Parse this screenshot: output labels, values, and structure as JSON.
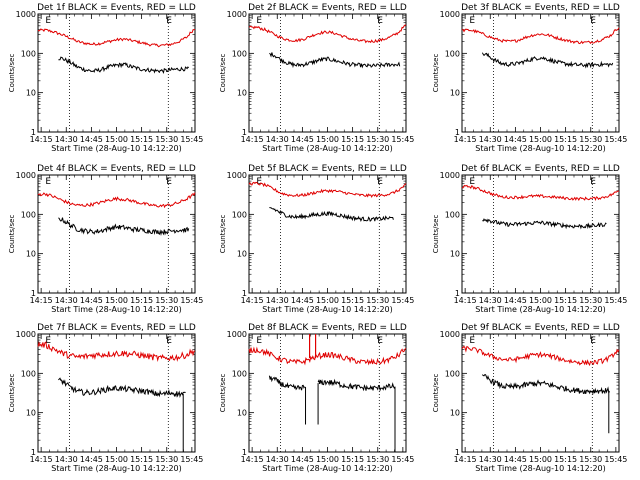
{
  "colors": {
    "background": "#ffffff",
    "axes": "#000000",
    "events": "#000000",
    "lld": "#e00000"
  },
  "chart_data": [
    {
      "type": "line",
      "detector": "1f",
      "title": "Det 1f BLACK = Events, RED = LLD",
      "xlabel": "Start Time (28-Aug-10 14:12:20)",
      "ylabel": "Counts/sec",
      "ylog": true,
      "ylim": [
        1,
        1000
      ],
      "xticks": [
        "14:15",
        "14:30",
        "14:45",
        "15:00",
        "15:15",
        "15:30",
        "15:45"
      ],
      "yticks": [
        "1",
        "10",
        "100",
        "1000"
      ],
      "markers": [
        {
          "label": "E",
          "at": 0.06
        },
        {
          "label": "E",
          "at": 0.83
        }
      ],
      "vlines": [
        0.2,
        0.83
      ],
      "x": [
        0.0,
        0.05,
        0.1,
        0.15,
        0.2,
        0.25,
        0.3,
        0.35,
        0.4,
        0.45,
        0.5,
        0.55,
        0.6,
        0.65,
        0.7,
        0.75,
        0.8,
        0.85,
        0.9,
        0.95,
        1.0
      ],
      "series": [
        {
          "name": "LLD",
          "color": "red",
          "start": 0.0,
          "end": 1.0,
          "noise": 0.035,
          "values": [
            380,
            390,
            350,
            300,
            250,
            200,
            180,
            170,
            180,
            200,
            220,
            230,
            210,
            190,
            170,
            160,
            160,
            170,
            200,
            260,
            430
          ]
        },
        {
          "name": "Events",
          "color": "black",
          "start": 0.13,
          "end": 0.96,
          "noise": 0.05,
          "values": [
            null,
            null,
            null,
            75,
            60,
            45,
            38,
            35,
            38,
            45,
            50,
            52,
            45,
            40,
            38,
            36,
            36,
            38,
            40,
            40,
            null
          ]
        }
      ]
    },
    {
      "type": "line",
      "detector": "2f",
      "title": "Det 2f BLACK = Events, RED = LLD",
      "xlabel": "Start Time (28-Aug-10 14:12:20)",
      "ylabel": "Counts/sec",
      "ylog": true,
      "ylim": [
        1,
        1000
      ],
      "xticks": [
        "14:15",
        "14:30",
        "14:45",
        "15:00",
        "15:15",
        "15:30",
        "15:45"
      ],
      "yticks": [
        "1",
        "10",
        "100",
        "1000"
      ],
      "markers": [
        {
          "label": "E",
          "at": 0.06
        },
        {
          "label": "E",
          "at": 0.83
        }
      ],
      "vlines": [
        0.2,
        0.83
      ],
      "x": [
        0.0,
        0.05,
        0.1,
        0.15,
        0.2,
        0.25,
        0.3,
        0.35,
        0.4,
        0.45,
        0.5,
        0.55,
        0.6,
        0.65,
        0.7,
        0.75,
        0.8,
        0.85,
        0.9,
        0.95,
        1.0
      ],
      "series": [
        {
          "name": "LLD",
          "color": "red",
          "start": 0.0,
          "end": 1.0,
          "noise": 0.035,
          "values": [
            450,
            460,
            400,
            320,
            250,
            220,
            210,
            230,
            280,
            330,
            350,
            320,
            270,
            230,
            210,
            200,
            205,
            220,
            260,
            330,
            520
          ]
        },
        {
          "name": "Events",
          "color": "black",
          "start": 0.13,
          "end": 0.96,
          "noise": 0.05,
          "values": [
            null,
            null,
            null,
            95,
            70,
            55,
            50,
            52,
            58,
            68,
            72,
            65,
            58,
            52,
            50,
            48,
            48,
            50,
            52,
            52,
            null
          ]
        }
      ]
    },
    {
      "type": "line",
      "detector": "3f",
      "title": "Det 3f BLACK = Events, RED = LLD",
      "xlabel": "Start Time (28-Aug-10 14:12:20)",
      "ylabel": "Counts/sec",
      "ylog": true,
      "ylim": [
        1,
        1000
      ],
      "xticks": [
        "14:15",
        "14:30",
        "14:45",
        "15:00",
        "15:15",
        "15:30",
        "15:45"
      ],
      "yticks": [
        "1",
        "10",
        "100",
        "1000"
      ],
      "markers": [
        {
          "label": "E",
          "at": 0.06
        },
        {
          "label": "E",
          "at": 0.83
        }
      ],
      "vlines": [
        0.2,
        0.83
      ],
      "x": [
        0.0,
        0.05,
        0.1,
        0.15,
        0.2,
        0.25,
        0.3,
        0.35,
        0.4,
        0.45,
        0.5,
        0.55,
        0.6,
        0.65,
        0.7,
        0.75,
        0.8,
        0.85,
        0.9,
        0.95,
        1.0
      ],
      "series": [
        {
          "name": "LLD",
          "color": "red",
          "start": 0.0,
          "end": 1.0,
          "noise": 0.035,
          "values": [
            380,
            390,
            350,
            290,
            240,
            210,
            200,
            210,
            250,
            290,
            310,
            290,
            250,
            220,
            200,
            190,
            190,
            200,
            230,
            290,
            460
          ]
        },
        {
          "name": "Events",
          "color": "black",
          "start": 0.13,
          "end": 0.96,
          "noise": 0.05,
          "values": [
            null,
            null,
            null,
            95,
            70,
            55,
            52,
            55,
            62,
            72,
            78,
            70,
            60,
            55,
            52,
            50,
            50,
            52,
            52,
            52,
            null
          ]
        }
      ]
    },
    {
      "type": "line",
      "detector": "4f",
      "title": "Det 4f BLACK = Events, RED = LLD",
      "xlabel": "Start Time (28-Aug-10 14:12:20)",
      "ylabel": "Counts/sec",
      "ylog": true,
      "ylim": [
        1,
        1000
      ],
      "xticks": [
        "14:15",
        "14:30",
        "14:45",
        "15:00",
        "15:15",
        "15:30",
        "15:45"
      ],
      "yticks": [
        "1",
        "10",
        "100",
        "1000"
      ],
      "markers": [
        {
          "label": "E",
          "at": 0.06
        },
        {
          "label": "E",
          "at": 0.83
        }
      ],
      "vlines": [
        0.2,
        0.83
      ],
      "x": [
        0.0,
        0.05,
        0.1,
        0.15,
        0.2,
        0.25,
        0.3,
        0.35,
        0.4,
        0.45,
        0.5,
        0.55,
        0.6,
        0.65,
        0.7,
        0.75,
        0.8,
        0.85,
        0.9,
        0.95,
        1.0
      ],
      "series": [
        {
          "name": "LLD",
          "color": "red",
          "start": 0.0,
          "end": 1.0,
          "noise": 0.04,
          "values": [
            320,
            330,
            280,
            230,
            190,
            170,
            170,
            180,
            200,
            230,
            250,
            240,
            220,
            195,
            175,
            165,
            165,
            175,
            200,
            250,
            330
          ]
        },
        {
          "name": "Events",
          "color": "black",
          "start": 0.13,
          "end": 0.96,
          "noise": 0.06,
          "values": [
            null,
            null,
            null,
            75,
            55,
            42,
            38,
            36,
            38,
            44,
            48,
            46,
            42,
            40,
            38,
            36,
            36,
            38,
            40,
            40,
            null
          ]
        }
      ]
    },
    {
      "type": "line",
      "detector": "5f",
      "title": "Det 5f BLACK = Events, RED = LLD",
      "xlabel": "Start Time (28-Aug-10 14:12:20)",
      "ylabel": "Counts/sec",
      "ylog": true,
      "ylim": [
        1,
        1000
      ],
      "xticks": [
        "14:15",
        "14:30",
        "14:45",
        "15:00",
        "15:15",
        "15:30",
        "15:45"
      ],
      "yticks": [
        "1",
        "10",
        "100",
        "1000"
      ],
      "markers": [
        {
          "label": "E",
          "at": 0.06
        },
        {
          "label": "E",
          "at": 0.83
        }
      ],
      "vlines": [
        0.2,
        0.83
      ],
      "x": [
        0.0,
        0.05,
        0.1,
        0.15,
        0.2,
        0.25,
        0.3,
        0.35,
        0.4,
        0.45,
        0.5,
        0.55,
        0.6,
        0.65,
        0.7,
        0.75,
        0.8,
        0.85,
        0.9,
        0.95,
        1.0
      ],
      "series": [
        {
          "name": "LLD",
          "color": "red",
          "start": 0.0,
          "end": 1.0,
          "noise": 0.035,
          "values": [
            600,
            610,
            560,
            450,
            350,
            310,
            300,
            310,
            340,
            380,
            400,
            390,
            360,
            330,
            310,
            300,
            300,
            310,
            330,
            400,
            560
          ]
        },
        {
          "name": "Events",
          "color": "black",
          "start": 0.13,
          "end": 0.92,
          "noise": 0.05,
          "values": [
            null,
            null,
            null,
            140,
            110,
            90,
            85,
            88,
            95,
            100,
            105,
            100,
            90,
            82,
            78,
            75,
            75,
            78,
            80,
            null,
            null
          ]
        }
      ]
    },
    {
      "type": "line",
      "detector": "6f",
      "title": "Det 6f BLACK = Events, RED = LLD",
      "xlabel": "Start Time (28-Aug-10 14:12:20)",
      "ylabel": "Counts/sec",
      "ylog": true,
      "ylim": [
        1,
        1000
      ],
      "xticks": [
        "14:15",
        "14:30",
        "14:45",
        "15:00",
        "15:15",
        "15:30",
        "15:45"
      ],
      "yticks": [
        "1",
        "10",
        "100",
        "1000"
      ],
      "markers": [
        {
          "label": "E",
          "at": 0.06
        },
        {
          "label": "E",
          "at": 0.83
        }
      ],
      "vlines": [
        0.2,
        0.83
      ],
      "x": [
        0.0,
        0.05,
        0.1,
        0.15,
        0.2,
        0.25,
        0.3,
        0.35,
        0.4,
        0.45,
        0.5,
        0.55,
        0.6,
        0.65,
        0.7,
        0.75,
        0.8,
        0.85,
        0.9,
        0.95,
        1.0
      ],
      "series": [
        {
          "name": "LLD",
          "color": "red",
          "start": 0.0,
          "end": 1.0,
          "noise": 0.035,
          "values": [
            500,
            510,
            450,
            380,
            320,
            280,
            270,
            270,
            280,
            290,
            290,
            280,
            270,
            260,
            250,
            250,
            250,
            255,
            270,
            310,
            400
          ]
        },
        {
          "name": "Events",
          "color": "black",
          "start": 0.13,
          "end": 0.92,
          "noise": 0.05,
          "values": [
            null,
            null,
            null,
            75,
            65,
            58,
            55,
            56,
            58,
            60,
            62,
            58,
            55,
            52,
            50,
            50,
            50,
            52,
            55,
            null,
            null
          ]
        }
      ]
    },
    {
      "type": "line",
      "detector": "7f",
      "title": "Det 7f BLACK = Events, RED = LLD",
      "xlabel": "Start Time (28-Aug-10 14:12:20)",
      "ylabel": "Counts/sec",
      "ylog": true,
      "ylim": [
        1,
        1000
      ],
      "xticks": [
        "14:15",
        "14:30",
        "14:45",
        "15:00",
        "15:15",
        "15:30",
        "15:45"
      ],
      "yticks": [
        "1",
        "10",
        "100",
        "1000"
      ],
      "markers": [
        {
          "label": "E",
          "at": 0.06
        },
        {
          "label": "E",
          "at": 0.83
        }
      ],
      "vlines": [
        0.2,
        0.83
      ],
      "x": [
        0.0,
        0.05,
        0.1,
        0.15,
        0.2,
        0.25,
        0.3,
        0.35,
        0.4,
        0.45,
        0.5,
        0.55,
        0.6,
        0.65,
        0.7,
        0.75,
        0.8,
        0.85,
        0.9,
        0.95,
        1.0
      ],
      "series": [
        {
          "name": "LLD",
          "color": "red",
          "start": 0.0,
          "end": 1.0,
          "noise": 0.08,
          "values": [
            550,
            520,
            420,
            330,
            280,
            260,
            270,
            290,
            300,
            310,
            320,
            320,
            310,
            290,
            270,
            250,
            240,
            250,
            260,
            300,
            380
          ]
        },
        {
          "name": "Events",
          "color": "black",
          "start": 0.13,
          "end": 0.94,
          "noise": 0.07,
          "values": [
            null,
            null,
            null,
            65,
            45,
            35,
            32,
            33,
            36,
            40,
            42,
            40,
            38,
            36,
            34,
            30,
            30,
            32,
            30,
            30,
            null
          ]
        }
      ],
      "dips": [
        {
          "series": "Events",
          "at": 0.925,
          "to": 1
        }
      ]
    },
    {
      "type": "line",
      "detector": "8f",
      "title": "Det 8f BLACK = Events, RED = LLD",
      "xlabel": "Start Time (28-Aug-10 14:12:20)",
      "ylabel": "Counts/sec",
      "ylog": true,
      "ylim": [
        1,
        1000
      ],
      "xticks": [
        "14:15",
        "14:30",
        "14:45",
        "15:00",
        "15:15",
        "15:30",
        "15:45"
      ],
      "yticks": [
        "1",
        "10",
        "100",
        "1000"
      ],
      "markers": [
        {
          "label": "E",
          "at": 0.06
        },
        {
          "label": "E",
          "at": 0.83
        }
      ],
      "vlines": [
        0.2,
        0.83
      ],
      "x": [
        0.0,
        0.05,
        0.1,
        0.15,
        0.2,
        0.25,
        0.3,
        0.35,
        0.4,
        0.45,
        0.5,
        0.55,
        0.6,
        0.65,
        0.7,
        0.75,
        0.8,
        0.85,
        0.9,
        0.95,
        1.0
      ],
      "series": [
        {
          "name": "LLD",
          "color": "red",
          "start": 0.0,
          "end": 1.0,
          "noise": 0.07,
          "values": [
            380,
            400,
            350,
            280,
            230,
            200,
            190,
            200,
            240,
            280,
            300,
            280,
            250,
            220,
            200,
            190,
            190,
            200,
            230,
            280,
            430
          ]
        },
        {
          "name": "Events",
          "color": "black",
          "start": 0.13,
          "end": 0.93,
          "noise": 0.07,
          "values": [
            null,
            null,
            null,
            75,
            55,
            45,
            42,
            44,
            50,
            58,
            60,
            56,
            50,
            46,
            44,
            42,
            42,
            44,
            46,
            null,
            null
          ]
        }
      ],
      "spikes": [
        {
          "series": "LLD",
          "at": 0.405,
          "to": 1000
        }
      ],
      "gaps": [
        {
          "from": 0.36,
          "to": 0.44
        }
      ],
      "dips": [
        {
          "series": "Events",
          "at": 0.36,
          "to": 5
        },
        {
          "series": "Events",
          "at": 0.44,
          "to": 5
        },
        {
          "series": "Events",
          "at": 0.93,
          "to": 1
        }
      ]
    },
    {
      "type": "line",
      "detector": "9f",
      "title": "Det 9f BLACK = Events, RED = LLD",
      "xlabel": "Start Time (28-Aug-10 14:12:20)",
      "ylabel": "Counts/sec",
      "ylog": true,
      "ylim": [
        1,
        1000
      ],
      "xticks": [
        "14:15",
        "14:30",
        "14:45",
        "15:00",
        "15:15",
        "15:30",
        "15:45"
      ],
      "yticks": [
        "1",
        "10",
        "100",
        "1000"
      ],
      "markers": [
        {
          "label": "E",
          "at": 0.06
        },
        {
          "label": "E",
          "at": 0.83
        }
      ],
      "vlines": [
        0.2,
        0.83
      ],
      "x": [
        0.0,
        0.05,
        0.1,
        0.15,
        0.2,
        0.25,
        0.3,
        0.35,
        0.4,
        0.45,
        0.5,
        0.55,
        0.6,
        0.65,
        0.7,
        0.75,
        0.8,
        0.85,
        0.9,
        0.95,
        1.0
      ],
      "series": [
        {
          "name": "LLD",
          "color": "red",
          "start": 0.0,
          "end": 1.0,
          "noise": 0.06,
          "values": [
            420,
            430,
            380,
            310,
            260,
            230,
            220,
            230,
            260,
            290,
            300,
            280,
            250,
            220,
            200,
            190,
            185,
            190,
            210,
            260,
            410
          ]
        },
        {
          "name": "Events",
          "color": "black",
          "start": 0.13,
          "end": 0.94,
          "noise": 0.07,
          "values": [
            null,
            null,
            null,
            80,
            60,
            48,
            45,
            46,
            50,
            55,
            56,
            52,
            46,
            42,
            38,
            36,
            35,
            36,
            36,
            36,
            null
          ]
        }
      ],
      "dips": [
        {
          "series": "Events",
          "at": 0.935,
          "to": 3
        }
      ]
    }
  ]
}
